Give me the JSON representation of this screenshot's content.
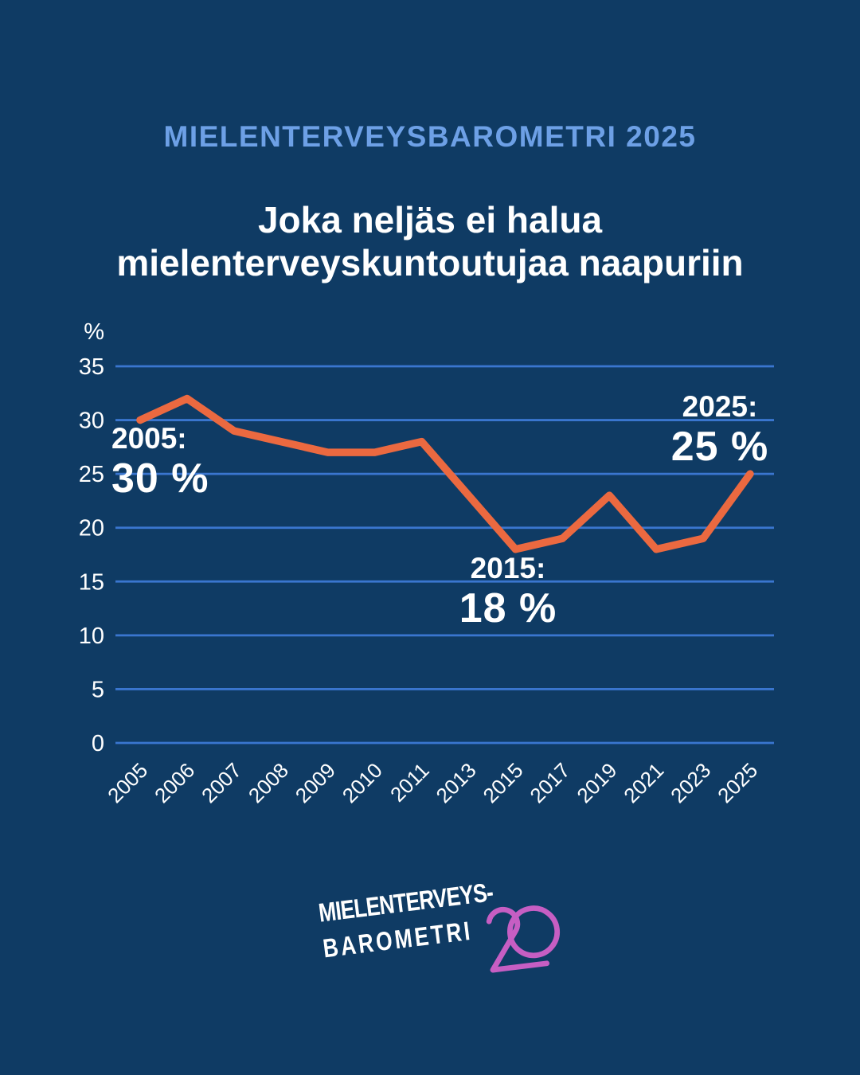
{
  "header": {
    "kicker": "MIELENTERVEYSBAROMETRI 2025",
    "title_line1": "Joka neljäs ei halua",
    "title_line2": "mielenterveyskuntoutujaa naapuriin"
  },
  "chart_data": {
    "type": "line",
    "x": [
      2005,
      2006,
      2007,
      2008,
      2009,
      2010,
      2011,
      2013,
      2015,
      2017,
      2019,
      2021,
      2023,
      2025
    ],
    "values": [
      30,
      32,
      29,
      28,
      27,
      27,
      28,
      23,
      18,
      19,
      23,
      18,
      19,
      25
    ],
    "unit_label": "%",
    "ylim": [
      0,
      35
    ],
    "ytick_step": 5,
    "grid": true,
    "legend": "none",
    "line_color": "#eb6940",
    "grid_color": "#3a76cf",
    "annotations": [
      {
        "label": "2005:",
        "value_text": "30 %"
      },
      {
        "label": "2015:",
        "value_text": "18 %"
      },
      {
        "label": "2025:",
        "value_text": "25 %"
      }
    ]
  },
  "footer": {
    "logo_line1": "MIELENTERVEYS-",
    "logo_line2": "BAROMETRI",
    "logo_number": "20"
  },
  "colors": {
    "bg": "#0f3b64",
    "kicker": "#6da0e6",
    "text": "#ffffff",
    "grid": "#3a76cf",
    "line": "#eb6940",
    "logo_pink": "#c65ec3"
  }
}
